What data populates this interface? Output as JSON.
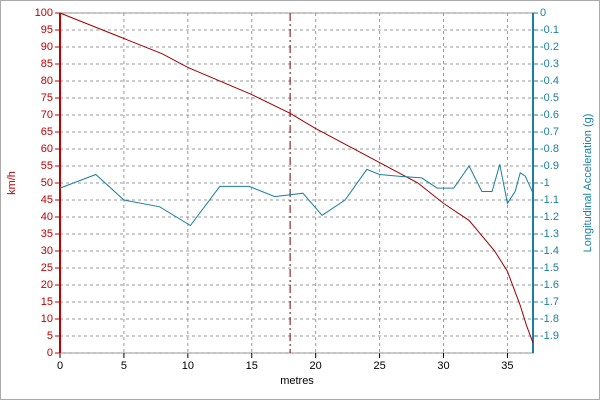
{
  "chart_data": {
    "type": "line",
    "x_label": "metres",
    "y_label": "km/h",
    "y2_label": "Longitudinal Acceleration (g)",
    "xlim": [
      0,
      37
    ],
    "xticks": [
      0,
      5,
      10,
      15,
      20,
      25,
      30,
      35
    ],
    "ylim": [
      0,
      100
    ],
    "yticks": [
      0,
      5,
      10,
      15,
      20,
      25,
      30,
      35,
      40,
      45,
      50,
      55,
      60,
      65,
      70,
      75,
      80,
      85,
      90,
      95,
      100
    ],
    "y2lim": [
      -2,
      0
    ],
    "y2ticks": [
      0,
      -0.1,
      -0.2,
      -0.3,
      -0.4,
      -0.5,
      -0.6,
      -0.7,
      -0.8,
      -0.9,
      -1,
      -1.1,
      -1.2,
      -1.3,
      -1.4,
      -1.5,
      -1.6,
      -1.7,
      -1.8,
      -1.9
    ],
    "grid": true,
    "cursor_x": 18,
    "series": [
      {
        "color": "#a00000",
        "axis": "y",
        "x": [
          0,
          5,
          8,
          10,
          15,
          18,
          20,
          25,
          28,
          30,
          32,
          34,
          35,
          36,
          36.5,
          37
        ],
        "values": [
          100,
          92.5,
          88,
          84,
          76,
          70.5,
          66,
          56,
          50,
          44,
          39,
          30,
          24,
          14,
          8,
          3
        ]
      },
      {
        "color": "#1a7fa0",
        "axis": "y2",
        "x": [
          0,
          2.8,
          5,
          7.8,
          10.2,
          12.5,
          14.8,
          16.8,
          19,
          20.5,
          22.3,
          24,
          25,
          26.5,
          28.3,
          29.5,
          30.8,
          32,
          33,
          33.8,
          34.4,
          35,
          35.6,
          36,
          36.4,
          37
        ],
        "values": [
          -1.03,
          -0.95,
          -1.1,
          -1.14,
          -1.25,
          -1.02,
          -1.02,
          -1.08,
          -1.06,
          -1.19,
          -1.1,
          -0.92,
          -0.95,
          -0.96,
          -0.97,
          -1.03,
          -1.03,
          -0.9,
          -1.05,
          -1.05,
          -0.89,
          -1.12,
          -1.05,
          -0.94,
          -0.96,
          -1.06
        ]
      }
    ]
  }
}
